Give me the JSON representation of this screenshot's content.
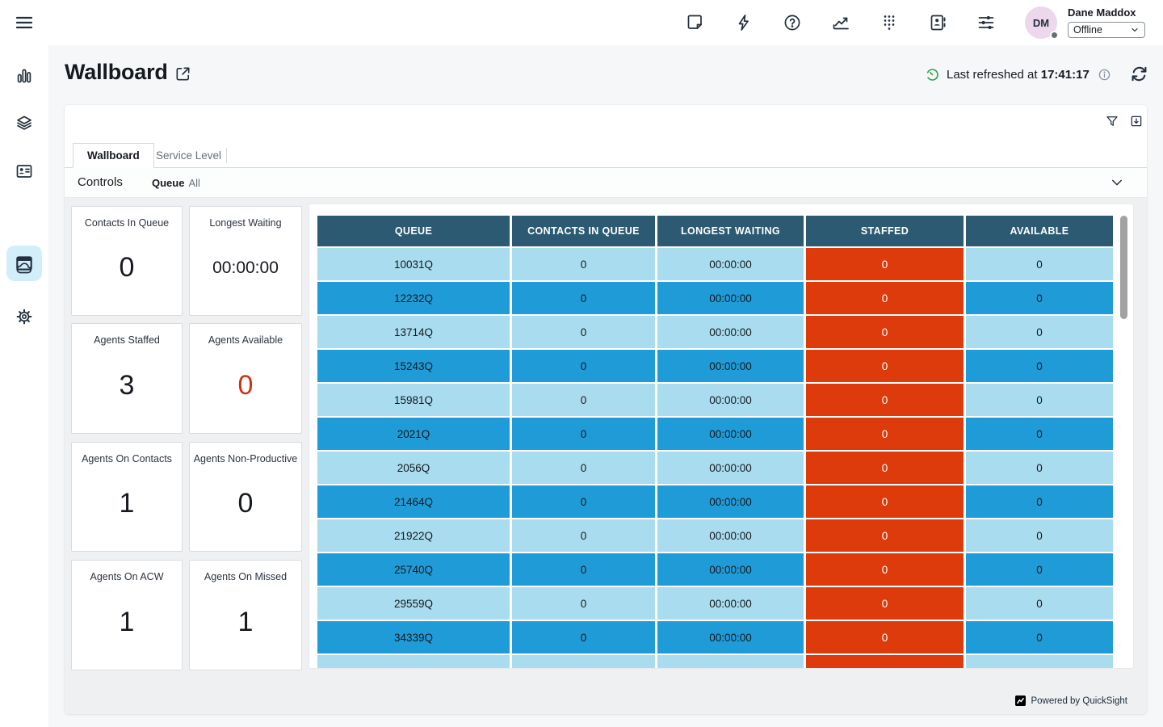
{
  "topbar": {
    "user": {
      "initials": "DM",
      "name": "Dane Maddox",
      "status": "Offline"
    },
    "icons": [
      "notes-icon",
      "quick-actions-icon",
      "help-icon",
      "metrics-icon",
      "dialpad-icon",
      "directory-icon",
      "settings-sliders-icon"
    ]
  },
  "sidebar": {
    "icons": [
      "bar-chart-icon",
      "layers-icon",
      "id-card-icon",
      "window-icon",
      "cloud-icon",
      "gear-icon"
    ],
    "active": "window-icon"
  },
  "header": {
    "title": "Wallboard",
    "refresh": {
      "label": "Last refreshed at",
      "time": "17:41:17"
    }
  },
  "tabs": [
    {
      "label": "Wallboard",
      "active": true
    },
    {
      "label": "Service Level",
      "active": false
    }
  ],
  "controls": {
    "label": "Controls",
    "queue_label": "Queue",
    "queue_value": "All"
  },
  "kpis": [
    {
      "label": "Contacts In Queue",
      "value": "0"
    },
    {
      "label": "Longest Waiting",
      "value": "00:00:00"
    },
    {
      "label": "Agents Staffed",
      "value": "3"
    },
    {
      "label": "Agents Available",
      "value": "0"
    },
    {
      "label": "Agents On Contacts",
      "value": "1"
    },
    {
      "label": "Agents Non-Productive",
      "value": "0"
    },
    {
      "label": "Agents On ACW",
      "value": "1"
    },
    {
      "label": "Agents On Missed",
      "value": "1"
    }
  ],
  "chart_data": {
    "type": "table",
    "title": "Queue wallboard",
    "columns": [
      "QUEUE",
      "CONTACTS IN QUEUE",
      "LONGEST WAITING",
      "STAFFED",
      "AVAILABLE"
    ],
    "rows": [
      {
        "queue": "10031Q",
        "contacts_in_queue": "0",
        "longest_waiting": "00:00:00",
        "staffed": "0",
        "available": "0"
      },
      {
        "queue": "12232Q",
        "contacts_in_queue": "0",
        "longest_waiting": "00:00:00",
        "staffed": "0",
        "available": "0"
      },
      {
        "queue": "13714Q",
        "contacts_in_queue": "0",
        "longest_waiting": "00:00:00",
        "staffed": "0",
        "available": "0"
      },
      {
        "queue": "15243Q",
        "contacts_in_queue": "0",
        "longest_waiting": "00:00:00",
        "staffed": "0",
        "available": "0"
      },
      {
        "queue": "15981Q",
        "contacts_in_queue": "0",
        "longest_waiting": "00:00:00",
        "staffed": "0",
        "available": "0"
      },
      {
        "queue": "2021Q",
        "contacts_in_queue": "0",
        "longest_waiting": "00:00:00",
        "staffed": "0",
        "available": "0"
      },
      {
        "queue": "2056Q",
        "contacts_in_queue": "0",
        "longest_waiting": "00:00:00",
        "staffed": "0",
        "available": "0"
      },
      {
        "queue": "21464Q",
        "contacts_in_queue": "0",
        "longest_waiting": "00:00:00",
        "staffed": "0",
        "available": "0"
      },
      {
        "queue": "21922Q",
        "contacts_in_queue": "0",
        "longest_waiting": "00:00:00",
        "staffed": "0",
        "available": "0"
      },
      {
        "queue": "25740Q",
        "contacts_in_queue": "0",
        "longest_waiting": "00:00:00",
        "staffed": "0",
        "available": "0"
      },
      {
        "queue": "29559Q",
        "contacts_in_queue": "0",
        "longest_waiting": "00:00:00",
        "staffed": "0",
        "available": "0"
      },
      {
        "queue": "34339Q",
        "contacts_in_queue": "0",
        "longest_waiting": "00:00:00",
        "staffed": "0",
        "available": "0"
      },
      {
        "queue": "",
        "contacts_in_queue": "",
        "longest_waiting": "",
        "staffed": "",
        "available": "",
        "clipped": true
      }
    ]
  },
  "footer": {
    "label": "Powered by QuickSight"
  },
  "colors": {
    "table_header": "#2b5a72",
    "row_light": "#a8dcee",
    "row_dark": "#1f9cd7",
    "staffed_cell": "#dd3b0b",
    "kpi_alert": "#d13212",
    "refresh_green": "#2ea44f",
    "icon_navy": "#232f3e",
    "active_nav_bg": "#d3eefb"
  }
}
